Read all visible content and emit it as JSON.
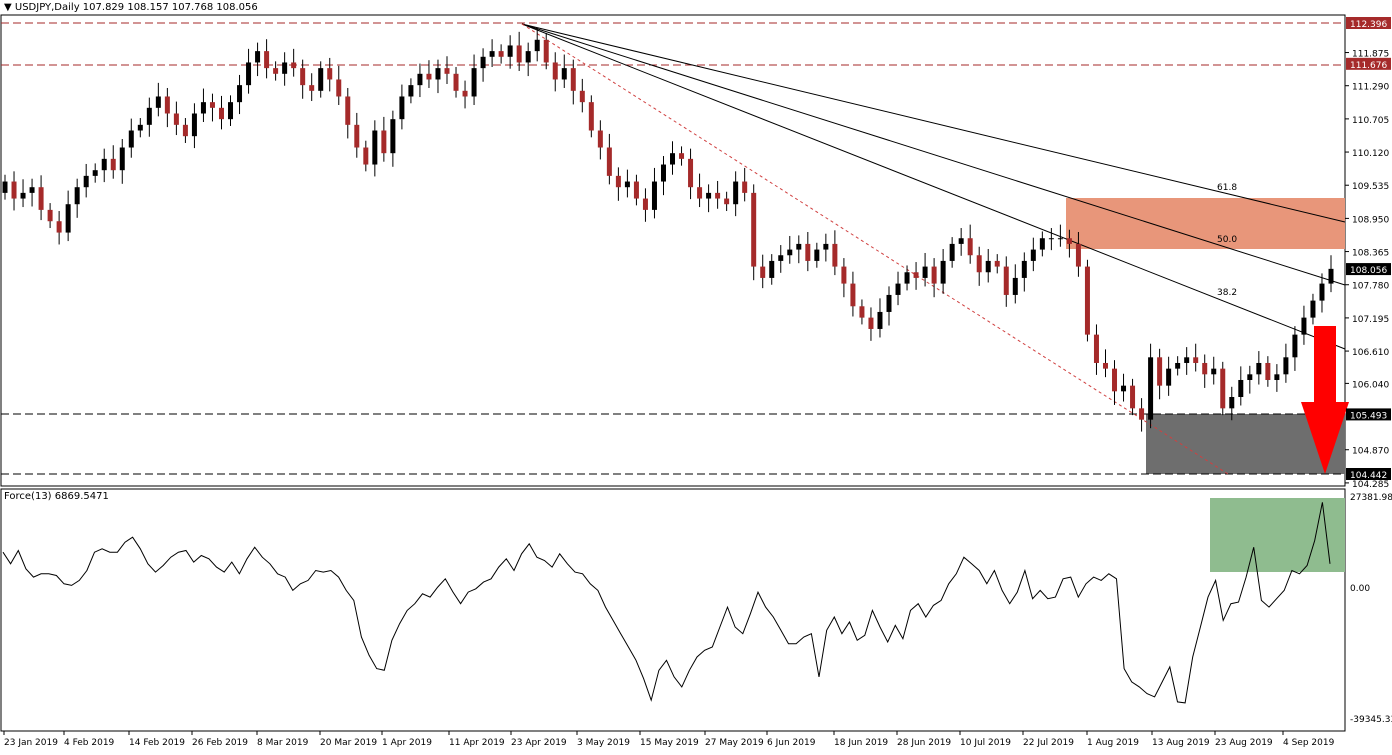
{
  "header": {
    "price_title": "USDJPY,Daily",
    "ohlc": "107.829 108.157 107.768 108.056",
    "indicator_title": "Force(13) 6869.5471"
  },
  "colors": {
    "bull": "#000000",
    "bear": "#a52a2a",
    "sell_zone": "#e8967a",
    "support_zone": "#6e6e6e",
    "force_zone": "#8fbc8f",
    "arrow": "#ff0000",
    "dashed_red": "#a52a2a",
    "price_tag": "#a52a2a",
    "current_tag": "#000000"
  },
  "chart_data": [
    {
      "type": "candlestick",
      "title": "USDJPY,Daily",
      "ylim": [
        104.285,
        112.6
      ],
      "y_ticks": [
        "112.396",
        "111.875",
        "111.676",
        "111.290",
        "110.705",
        "110.120",
        "109.535",
        "108.950",
        "108.365",
        "108.056",
        "107.780",
        "107.195",
        "106.610",
        "106.040",
        "105.493",
        "104.870",
        "104.442",
        "104.285"
      ],
      "x_ticks": [
        "23 Jan 2019",
        "4 Feb 2019",
        "14 Feb 2019",
        "26 Feb 2019",
        "8 Mar 2019",
        "20 Mar 2019",
        "1 Apr 2019",
        "11 Apr 2019",
        "23 Apr 2019",
        "3 May 2019",
        "15 May 2019",
        "27 May 2019",
        "6 Jun 2019",
        "18 Jun 2019",
        "28 Jun 2019",
        "10 Jul 2019",
        "22 Jul 2019",
        "1 Aug 2019",
        "13 Aug 2019",
        "23 Aug 2019",
        "4 Sep 2019"
      ],
      "close_path": [
        109.6,
        109.3,
        109.4,
        109.5,
        109.1,
        108.9,
        108.7,
        109.2,
        109.5,
        109.7,
        109.8,
        110.0,
        109.8,
        110.2,
        110.5,
        110.6,
        110.9,
        111.1,
        110.8,
        110.6,
        110.4,
        110.8,
        111.0,
        110.9,
        110.7,
        111.0,
        111.3,
        111.7,
        111.9,
        111.6,
        111.5,
        111.7,
        111.6,
        111.3,
        111.2,
        111.6,
        111.4,
        111.1,
        110.6,
        110.2,
        109.9,
        110.5,
        110.1,
        110.7,
        111.1,
        111.3,
        111.5,
        111.4,
        111.6,
        111.5,
        111.2,
        111.1,
        111.6,
        111.8,
        111.9,
        111.8,
        112.0,
        111.7,
        111.9,
        112.1,
        111.7,
        111.4,
        111.6,
        111.2,
        111.0,
        110.5,
        110.2,
        109.7,
        109.5,
        109.6,
        109.3,
        109.1,
        109.6,
        109.9,
        110.1,
        110.0,
        109.5,
        109.3,
        109.4,
        109.3,
        109.2,
        109.6,
        109.4,
        108.1,
        107.9,
        108.2,
        108.3,
        108.4,
        108.5,
        108.2,
        108.4,
        108.5,
        108.1,
        107.8,
        107.4,
        107.2,
        107.0,
        107.3,
        107.6,
        107.8,
        108.0,
        107.9,
        108.1,
        107.8,
        108.2,
        108.5,
        108.6,
        108.3,
        108.0,
        108.2,
        108.1,
        107.6,
        107.9,
        108.2,
        108.4,
        108.6,
        108.6,
        108.6,
        108.5,
        108.1,
        106.9,
        106.4,
        106.3,
        105.9,
        106.0,
        105.6,
        105.4,
        106.5,
        106.0,
        106.3,
        106.4,
        106.5,
        106.4,
        106.2,
        106.3,
        105.6,
        105.8,
        106.1,
        106.2,
        106.4,
        106.1,
        106.2,
        106.5,
        106.9,
        107.2,
        107.5,
        107.8,
        108.06
      ],
      "annotations": {
        "resistance_lines": [
          "112.396",
          "111.676"
        ],
        "support_zone": [
          "105.493",
          "104.442"
        ],
        "fib_fan_labels": [
          "61.8",
          "50.0",
          "38.2"
        ],
        "current_price": "108.056"
      }
    },
    {
      "type": "line",
      "title": "Force(13) 6869.5471",
      "ylim": [
        -39345.33,
        27381.98
      ],
      "y_ticks": [
        "27381.982",
        "0.00",
        "-39345.33"
      ],
      "series": [
        {
          "values": [
            10500,
            7000,
            11000,
            5500,
            3000,
            4000,
            4000,
            3500,
            1000,
            500,
            2000,
            5000,
            10500,
            11500,
            10500,
            10500,
            13500,
            15000,
            11500,
            7000,
            4500,
            6500,
            9000,
            10500,
            11000,
            7500,
            9500,
            8500,
            6000,
            4500,
            7500,
            4000,
            8500,
            12000,
            9000,
            7000,
            4000,
            3000,
            -1000,
            1000,
            2000,
            5000,
            4500,
            5000,
            3000,
            -1000,
            -4000,
            -15000,
            -20500,
            -24500,
            -25000,
            -16000,
            -11000,
            -7000,
            -5000,
            -2000,
            -3000,
            0,
            2500,
            -1500,
            -5000,
            -1500,
            -500,
            1500,
            2500,
            6000,
            8500,
            5000,
            10000,
            13000,
            9000,
            8000,
            6000,
            10000,
            7000,
            4500,
            4000,
            1000,
            -1000,
            -6000,
            -10000,
            -14000,
            -18000,
            -22000,
            -27500,
            -34000,
            -25000,
            -22000,
            -27000,
            -30000,
            -25000,
            -21000,
            -19000,
            -18000,
            -12000,
            -6000,
            -12000,
            -14000,
            -8000,
            -1500,
            -6000,
            -9000,
            -13000,
            -17000,
            -17000,
            -15000,
            -14000,
            -27000,
            -13000,
            -9000,
            -14000,
            -10500,
            -16000,
            -14500,
            -7000,
            -12000,
            -16500,
            -11500,
            -15500,
            -7000,
            -5000,
            -9000,
            -5500,
            -4000,
            1000,
            4000,
            9000,
            7000,
            5000,
            1000,
            5000,
            -1000,
            -5000,
            -1500,
            5000,
            -3500,
            -1000,
            -3500,
            -3000,
            2500,
            3000,
            -3000,
            1000,
            3000,
            2000,
            4000,
            2500,
            -24500,
            -28500,
            -30000,
            -32000,
            -33000,
            -28500,
            -24000,
            -34500,
            -34800,
            -21000,
            -12000,
            -3000,
            2000,
            -10000,
            -5000,
            -4500,
            3000,
            12000,
            -4000,
            -6000,
            -3500,
            -1000,
            5000,
            4000,
            6500,
            14000,
            25500,
            7000
          ]
        }
      ]
    }
  ]
}
